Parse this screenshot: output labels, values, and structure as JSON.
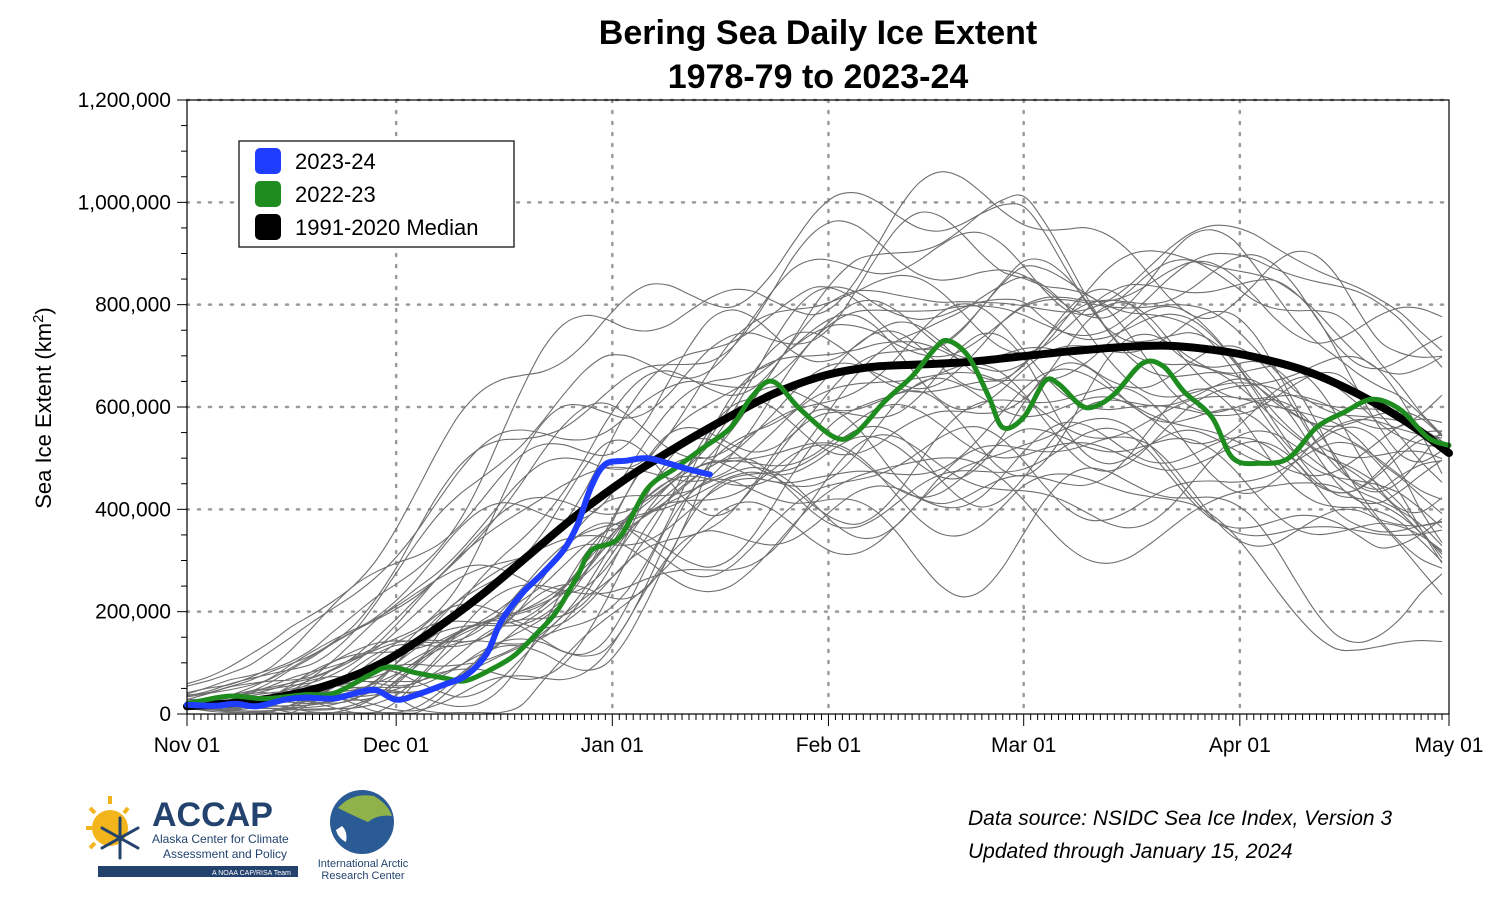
{
  "chart_data": {
    "type": "line",
    "title_line1": "Bering Sea Daily Ice Extent",
    "title_line2": "1978-79 to 2023-24",
    "xlabel": "",
    "ylabel": "Sea Ice Extent (km",
    "ylabel_superscript": "2",
    "ylabel_close": ")",
    "xlim": [
      "Nov 01",
      "May 01"
    ],
    "x_ticks": [
      "Nov 01",
      "Dec 01",
      "Jan 01",
      "Feb 01",
      "Mar 01",
      "Apr 01",
      "May 01"
    ],
    "ylim": [
      0,
      1200000
    ],
    "y_ticks": [
      "0",
      "200,000",
      "400,000",
      "600,000",
      "800,000",
      "1,000,000",
      "1,200,000"
    ],
    "grid": "dotted",
    "legend_position": "top-left",
    "series": [
      {
        "name": "2023-24",
        "color": "#1f3dff",
        "points": [
          [
            "Nov 01",
            18000
          ],
          [
            "Nov 05",
            16000
          ],
          [
            "Nov 08",
            20000
          ],
          [
            "Nov 11",
            15000
          ],
          [
            "Nov 15",
            28000
          ],
          [
            "Nov 18",
            32000
          ],
          [
            "Nov 22",
            30000
          ],
          [
            "Nov 25",
            40000
          ],
          [
            "Nov 28",
            47000
          ],
          [
            "Dec 01",
            28000
          ],
          [
            "Dec 04",
            38000
          ],
          [
            "Dec 08",
            58000
          ],
          [
            "Dec 11",
            75000
          ],
          [
            "Dec 14",
            118000
          ],
          [
            "Dec 16",
            180000
          ],
          [
            "Dec 19",
            235000
          ],
          [
            "Dec 22",
            275000
          ],
          [
            "Dec 25",
            320000
          ],
          [
            "Dec 27",
            370000
          ],
          [
            "Dec 29",
            445000
          ],
          [
            "Dec 31",
            488000
          ],
          [
            "Jan 03",
            495000
          ],
          [
            "Jan 06",
            500000
          ],
          [
            "Jan 09",
            490000
          ],
          [
            "Jan 12",
            478000
          ],
          [
            "Jan 15",
            468000
          ]
        ]
      },
      {
        "name": "2022-23",
        "color": "#1e8c1e",
        "points": [
          [
            "Nov 01",
            20000
          ],
          [
            "Nov 07",
            35000
          ],
          [
            "Nov 12",
            30000
          ],
          [
            "Nov 18",
            38000
          ],
          [
            "Nov 22",
            40000
          ],
          [
            "Nov 27",
            75000
          ],
          [
            "Nov 30",
            92000
          ],
          [
            "Dec 04",
            80000
          ],
          [
            "Dec 08",
            70000
          ],
          [
            "Dec 11",
            65000
          ],
          [
            "Dec 15",
            90000
          ],
          [
            "Dec 18",
            115000
          ],
          [
            "Dec 21",
            155000
          ],
          [
            "Dec 24",
            200000
          ],
          [
            "Dec 27",
            270000
          ],
          [
            "Dec 29",
            320000
          ],
          [
            "Jan 02",
            345000
          ],
          [
            "Jan 06",
            440000
          ],
          [
            "Jan 10",
            480000
          ],
          [
            "Jan 14",
            520000
          ],
          [
            "Jan 18",
            560000
          ],
          [
            "Jan 21",
            620000
          ],
          [
            "Jan 24",
            650000
          ],
          [
            "Jan 28",
            595000
          ],
          [
            "Feb 02",
            540000
          ],
          [
            "Feb 05",
            550000
          ],
          [
            "Feb 09",
            610000
          ],
          [
            "Feb 13",
            660000
          ],
          [
            "Feb 16",
            710000
          ],
          [
            "Feb 18",
            730000
          ],
          [
            "Feb 21",
            700000
          ],
          [
            "Feb 24",
            620000
          ],
          [
            "Feb 26",
            560000
          ],
          [
            "Mar 01",
            580000
          ],
          [
            "Mar 04",
            650000
          ],
          [
            "Mar 06",
            645000
          ],
          [
            "Mar 09",
            605000
          ],
          [
            "Mar 11",
            600000
          ],
          [
            "Mar 14",
            625000
          ],
          [
            "Mar 18",
            685000
          ],
          [
            "Mar 21",
            680000
          ],
          [
            "Mar 24",
            630000
          ],
          [
            "Mar 28",
            580000
          ],
          [
            "Mar 31",
            500000
          ],
          [
            "Apr 04",
            490000
          ],
          [
            "Apr 08",
            500000
          ],
          [
            "Apr 12",
            560000
          ],
          [
            "Apr 16",
            590000
          ],
          [
            "Apr 20",
            615000
          ],
          [
            "Apr 24",
            595000
          ],
          [
            "Apr 28",
            540000
          ],
          [
            "May 01",
            525000
          ]
        ]
      },
      {
        "name": "1991-2020 Median",
        "color": "#000000",
        "points": [
          [
            "Nov 01",
            15000
          ],
          [
            "Nov 08",
            22000
          ],
          [
            "Nov 15",
            35000
          ],
          [
            "Nov 22",
            60000
          ],
          [
            "Nov 29",
            100000
          ],
          [
            "Dec 06",
            160000
          ],
          [
            "Dec 13",
            230000
          ],
          [
            "Dec 20",
            310000
          ],
          [
            "Dec 27",
            390000
          ],
          [
            "Jan 03",
            460000
          ],
          [
            "Jan 10",
            520000
          ],
          [
            "Jan 17",
            575000
          ],
          [
            "Jan 24",
            625000
          ],
          [
            "Jan 31",
            660000
          ],
          [
            "Feb 07",
            678000
          ],
          [
            "Feb 14",
            683000
          ],
          [
            "Feb 21",
            688000
          ],
          [
            "Feb 28",
            698000
          ],
          [
            "Mar 07",
            708000
          ],
          [
            "Mar 14",
            716000
          ],
          [
            "Mar 21",
            720000
          ],
          [
            "Mar 28",
            712000
          ],
          [
            "Apr 04",
            695000
          ],
          [
            "Apr 11",
            668000
          ],
          [
            "Apr 18",
            625000
          ],
          [
            "Apr 25",
            570000
          ],
          [
            "May 01",
            510000
          ]
        ]
      }
    ]
  },
  "legend": {
    "items": [
      {
        "label": "2023-24",
        "color": "#1f3dff"
      },
      {
        "label": "2022-23",
        "color": "#1e8c1e"
      },
      {
        "label": "1991-2020 Median",
        "color": "#000000"
      }
    ]
  },
  "footer": {
    "source_line1": "Data source: NSIDC Sea Ice Index, Version 3",
    "source_line2": "Updated through January 15, 2024"
  },
  "logos": {
    "accap_name": "ACCAP",
    "accap_line1": "Alaska Center for Climate",
    "accap_line2": "Assessment and Policy",
    "accap_tagline": "A NOAA CAP/RISA Team",
    "iarc_line1": "International Arctic",
    "iarc_line2": "Research Center"
  }
}
